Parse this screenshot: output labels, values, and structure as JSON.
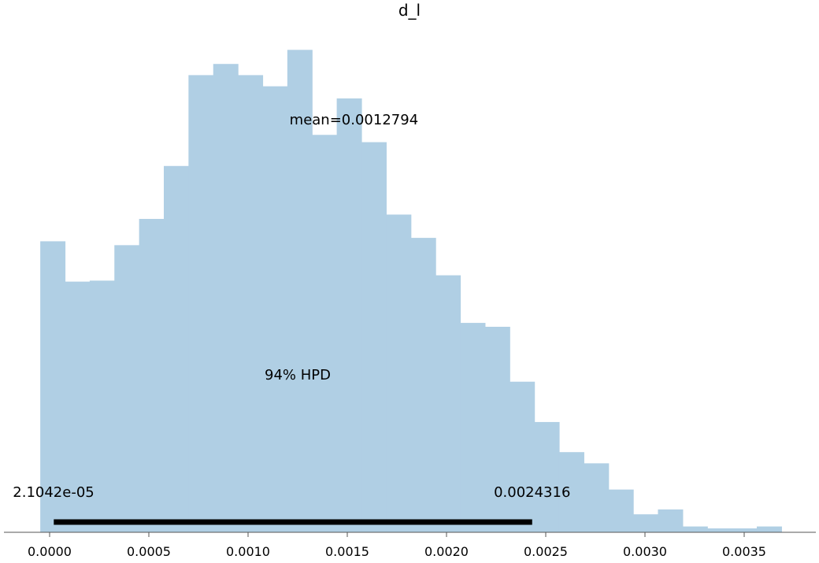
{
  "chart_data": {
    "type": "bar",
    "title": "d_l",
    "xlabel": "",
    "ylabel": "",
    "xlim": [
      -5e-05,
      0.00387
    ],
    "ylim": [
      0,
      1.0
    ],
    "bar_color": "#b0cfe4",
    "hpd_color": "#000000",
    "bin_width": 0.0001245,
    "bins": [
      {
        "x0": -4.71e-05,
        "value": 0.599
      },
      {
        "x0": 7.74e-05,
        "value": 0.516
      },
      {
        "x0": 0.0002019,
        "value": 0.518
      },
      {
        "x0": 0.0003264,
        "value": 0.591
      },
      {
        "x0": 0.0004509,
        "value": 0.645
      },
      {
        "x0": 0.0005754,
        "value": 0.754
      },
      {
        "x0": 0.0006999,
        "value": 0.941
      },
      {
        "x0": 0.0008244,
        "value": 0.964
      },
      {
        "x0": 0.0009489,
        "value": 0.941
      },
      {
        "x0": 0.0010734,
        "value": 0.918
      },
      {
        "x0": 0.0011979,
        "value": 0.993
      },
      {
        "x0": 0.0013224,
        "value": 0.818
      },
      {
        "x0": 0.0014469,
        "value": 0.893
      },
      {
        "x0": 0.0015714,
        "value": 0.803
      },
      {
        "x0": 0.0016959,
        "value": 0.654
      },
      {
        "x0": 0.0018204,
        "value": 0.606
      },
      {
        "x0": 0.0019449,
        "value": 0.529
      },
      {
        "x0": 0.0020694,
        "value": 0.431
      },
      {
        "x0": 0.0021939,
        "value": 0.423
      },
      {
        "x0": 0.0023184,
        "value": 0.31
      },
      {
        "x0": 0.0024429,
        "value": 0.227
      },
      {
        "x0": 0.0025674,
        "value": 0.165
      },
      {
        "x0": 0.0026919,
        "value": 0.142
      },
      {
        "x0": 0.0028164,
        "value": 0.088
      },
      {
        "x0": 0.0029409,
        "value": 0.037
      },
      {
        "x0": 0.0030654,
        "value": 0.047
      },
      {
        "x0": 0.0031899,
        "value": 0.012
      },
      {
        "x0": 0.0033144,
        "value": 0.008
      },
      {
        "x0": 0.0034389,
        "value": 0.008
      },
      {
        "x0": 0.0035634,
        "value": 0.012
      }
    ],
    "mean_label": "mean=0.0012794",
    "mean": 0.0012794,
    "hpd_label": "94% HPD",
    "hpd_low": 2.1042e-05,
    "hpd_high": 0.0024316,
    "hpd_low_label": "2.1042e-05",
    "hpd_high_label": "0.0024316",
    "xticks": [
      0.0,
      0.0005,
      0.001,
      0.0015,
      0.002,
      0.0025,
      0.003,
      0.0035
    ],
    "xtick_labels": [
      "0.0000",
      "0.0005",
      "0.0010",
      "0.0015",
      "0.0020",
      "0.0025",
      "0.0030",
      "0.0035"
    ],
    "grid": false,
    "legend": "none"
  }
}
